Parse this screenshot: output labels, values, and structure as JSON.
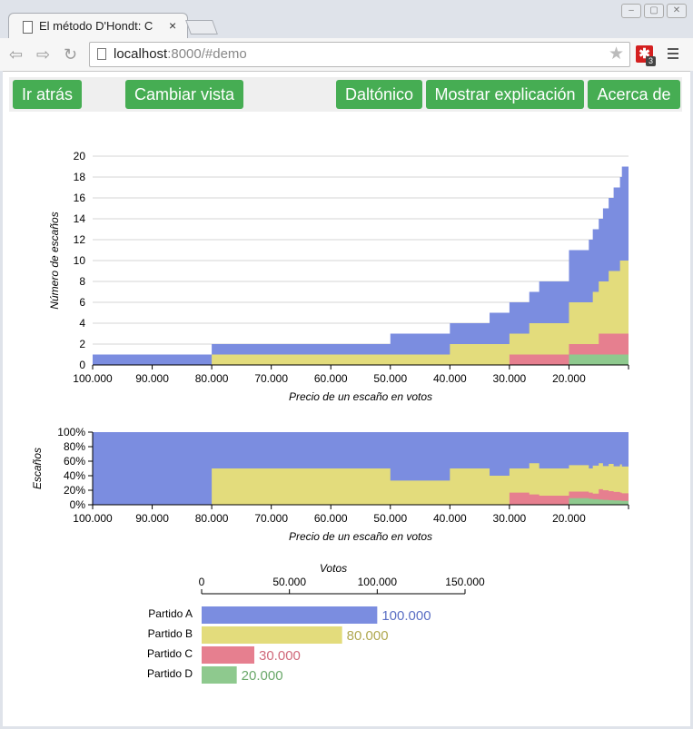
{
  "browser": {
    "tab_title": "El método D'Hondt: C",
    "tab_close": "×",
    "url_host": "localhost",
    "url_rest": ":8000/#demo",
    "extension_badge": "3"
  },
  "buttons": {
    "back": "Ir atrás",
    "change_view": "Cambiar vista",
    "colorblind": "Daltónico",
    "explain": "Mostrar explicación",
    "about": "Acerca de"
  },
  "colors": {
    "partido_a": "#7b8de0",
    "partido_b": "#e3dc7c",
    "partido_c": "#e67f8f",
    "partido_d": "#8ec98e",
    "button_green": "#46ad53"
  },
  "chart_data": [
    {
      "type": "area",
      "name": "seats_step_chart",
      "ylabel": "Número de escaños",
      "xlabel": "Precio de un escaño en votos",
      "x_reversed": true,
      "xlim": [
        100000,
        10000
      ],
      "ylim": [
        0,
        20
      ],
      "x_ticks": [
        "100.000",
        "90.000",
        "80.000",
        "70.000",
        "60.000",
        "50.000",
        "40.000",
        "30.000",
        "20.000"
      ],
      "y_ticks": [
        "0",
        "2",
        "4",
        "6",
        "8",
        "10",
        "12",
        "14",
        "16",
        "18",
        "20"
      ],
      "thresholds": {
        "Partido A": [
          100000,
          50000,
          33333,
          25000,
          20000,
          16667,
          14286,
          12500,
          11111,
          10000
        ],
        "Partido B": [
          80000,
          40000,
          26667,
          20000,
          16000,
          13333,
          11429,
          10000
        ],
        "Partido C": [
          30000,
          15000,
          10000
        ],
        "Partido D": [
          20000,
          10000
        ]
      }
    },
    {
      "type": "area",
      "name": "seat_share_chart",
      "ylabel": "Escaños",
      "xlabel": "Precio de un escaño en votos",
      "x_reversed": true,
      "y_ticks": [
        "0%",
        "20%",
        "40%",
        "60%",
        "80%",
        "100%"
      ],
      "x_ticks": [
        "100.000",
        "90.000",
        "80.000",
        "70.000",
        "60.000",
        "50.000",
        "40.000",
        "30.000",
        "20.000"
      ]
    },
    {
      "type": "bar",
      "name": "votes_chart",
      "title": "Votos",
      "x_ticks": [
        "0",
        "50.000",
        "100.000",
        "150.000"
      ],
      "xlim": [
        0,
        150000
      ],
      "categories": [
        "Partido A",
        "Partido B",
        "Partido C",
        "Partido D"
      ],
      "values": [
        100000,
        80000,
        30000,
        20000
      ],
      "value_labels": [
        "100.000",
        "80.000",
        "30.000",
        "20.000"
      ],
      "value_label_colors": [
        "#5b6fc4",
        "#b0a850",
        "#d0687a",
        "#6aa86a"
      ]
    }
  ]
}
